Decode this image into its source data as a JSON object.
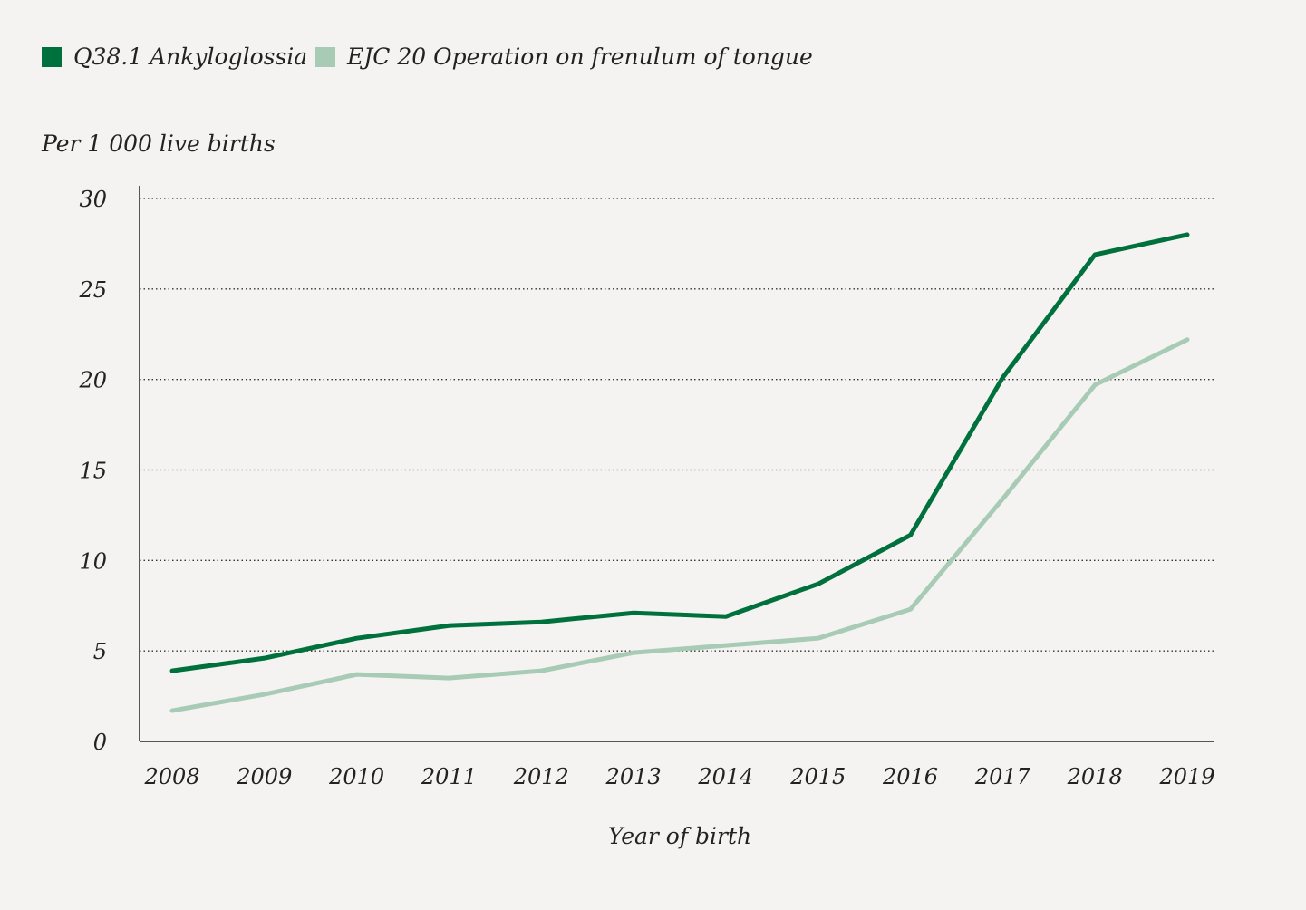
{
  "chart_data": {
    "type": "line",
    "title": "",
    "xlabel": "Year of birth",
    "ylabel": "Per 1 000 live births",
    "x": [
      "2008",
      "2009",
      "2010",
      "2011",
      "2012",
      "2013",
      "2014",
      "2015",
      "2016",
      "2017",
      "2018",
      "2019"
    ],
    "yticks": [
      "0",
      "5",
      "10",
      "15",
      "20",
      "25",
      "30"
    ],
    "ylim": [
      0,
      30
    ],
    "grid": "horizontal dotted",
    "legend": "top-left",
    "series": [
      {
        "name": "Q38.1 Ankyloglossia",
        "color": "#00703c",
        "values": [
          3.9,
          4.6,
          5.7,
          6.4,
          6.6,
          7.1,
          6.9,
          8.7,
          11.4,
          20.1,
          26.9,
          28.0
        ]
      },
      {
        "name": "EJC 20 Operation on frenulum of tongue",
        "color": "#a8cbb6",
        "values": [
          1.7,
          2.6,
          3.7,
          3.5,
          3.9,
          4.9,
          5.3,
          5.7,
          7.3,
          13.4,
          19.7,
          22.2
        ]
      }
    ]
  }
}
